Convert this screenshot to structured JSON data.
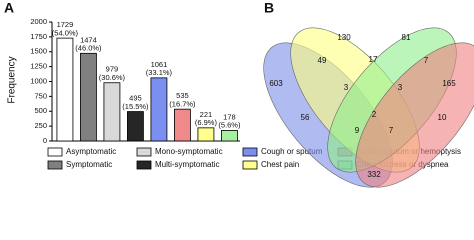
{
  "chart_data": [
    {
      "type": "bar",
      "panel_label": "A",
      "ylabel": "Frequency",
      "categories": [
        "Asymptomatic",
        "Symptomatic",
        "Mono-symptomatic",
        "Multi-symptomatic",
        "Cough or sputum",
        "Bloody sputum or hemoptysis",
        "Chest pain",
        "Chest distress or dyspnea"
      ],
      "values": [
        1729,
        1474,
        979,
        495,
        1061,
        535,
        221,
        178
      ],
      "value_labels": [
        "1729\n(54.0%)",
        "1474\n(46.0%)",
        "979\n(30.6%)",
        "495\n(15.5%)",
        "1061\n(33.1%)",
        "535\n(16.7%)",
        "221\n(6.9%)",
        "178\n(5.6%)"
      ],
      "colors": [
        "#ffffff",
        "#808080",
        "#d9d9d9",
        "#262626",
        "#7b8ff0",
        "#f08a8a",
        "#ffff8c",
        "#a6f0a0"
      ],
      "ylim": [
        0,
        2000
      ],
      "yticks": [
        0,
        250,
        500,
        750,
        1000,
        1250,
        1500,
        1750,
        2000
      ]
    },
    {
      "type": "venn",
      "panel_label": "B",
      "set_colors": [
        "#7b8fe8",
        "#ffff80",
        "#90ee8a",
        "#f08080"
      ],
      "values": [
        603,
        130,
        81,
        165,
        49,
        17,
        7,
        3,
        3,
        56,
        2,
        10,
        9,
        7,
        332
      ]
    }
  ]
}
